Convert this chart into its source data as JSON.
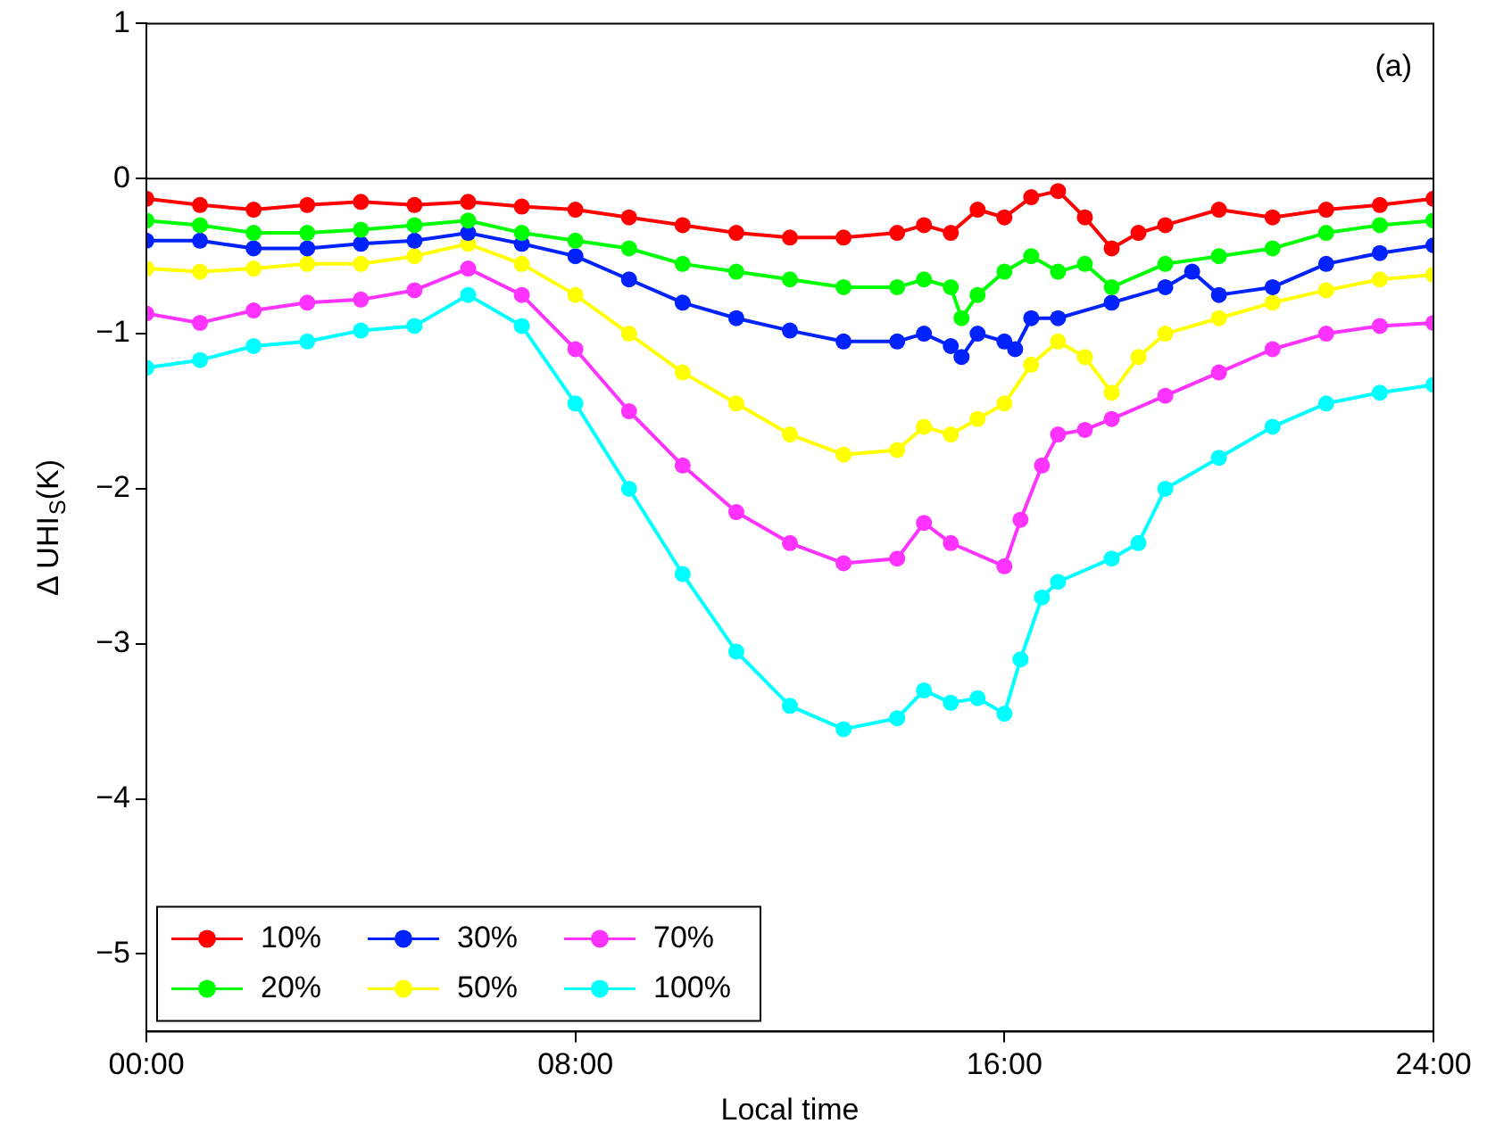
{
  "chart_data": {
    "type": "line",
    "xlabel": "Local time",
    "ylabel": "Δ UHI$_{S}$(K)",
    "annotations": [
      "(a)"
    ],
    "xlim": [
      0,
      24
    ],
    "xticks": [
      {
        "value": 0,
        "label": "00:00"
      },
      {
        "value": 8,
        "label": "08:00"
      },
      {
        "value": 16,
        "label": "16:00"
      },
      {
        "value": 24,
        "label": "24:00"
      }
    ],
    "ylim": [
      -5.5,
      1
    ],
    "yticks": [
      1,
      0,
      -1,
      -2,
      -3,
      -4,
      -5
    ],
    "grid": false,
    "legend": "bottom left",
    "marker": "circle",
    "line_style": "solid",
    "ref_lines": [
      {
        "axis": "y",
        "value": 0,
        "color": "#000000"
      }
    ],
    "series": [
      {
        "name": "10%",
        "color": "#ff0000",
        "x": [
          0,
          1,
          2,
          3,
          4,
          5,
          6,
          7,
          8,
          9,
          10,
          11,
          12,
          13,
          14,
          14.5,
          15,
          15.5,
          16,
          16.5,
          17,
          17.5,
          18,
          18.5,
          19,
          20,
          21,
          22,
          23,
          24
        ],
        "values": [
          -0.13,
          -0.17,
          -0.2,
          -0.17,
          -0.15,
          -0.17,
          -0.15,
          -0.18,
          -0.2,
          -0.25,
          -0.3,
          -0.35,
          -0.38,
          -0.38,
          -0.35,
          -0.3,
          -0.35,
          -0.2,
          -0.25,
          -0.12,
          -0.08,
          -0.25,
          -0.45,
          -0.35,
          -0.3,
          -0.2,
          -0.25,
          -0.2,
          -0.17,
          -0.13
        ]
      },
      {
        "name": "20%",
        "color": "#00ff00",
        "x": [
          0,
          1,
          2,
          3,
          4,
          5,
          6,
          7,
          8,
          9,
          10,
          11,
          12,
          13,
          14,
          14.5,
          15,
          15.2,
          15.5,
          16,
          16.5,
          17,
          17.5,
          18,
          19,
          20,
          21,
          22,
          23,
          24
        ],
        "values": [
          -0.27,
          -0.3,
          -0.35,
          -0.35,
          -0.33,
          -0.3,
          -0.27,
          -0.35,
          -0.4,
          -0.45,
          -0.55,
          -0.6,
          -0.65,
          -0.7,
          -0.7,
          -0.65,
          -0.7,
          -0.9,
          -0.75,
          -0.6,
          -0.5,
          -0.6,
          -0.55,
          -0.7,
          -0.55,
          -0.5,
          -0.45,
          -0.35,
          -0.3,
          -0.27
        ]
      },
      {
        "name": "30%",
        "color": "#0022ff",
        "x": [
          0,
          1,
          2,
          3,
          4,
          5,
          6,
          7,
          8,
          9,
          10,
          11,
          12,
          13,
          14,
          14.5,
          15,
          15.2,
          15.5,
          16,
          16.2,
          16.5,
          17,
          18,
          19,
          19.5,
          20,
          21,
          22,
          23,
          24
        ],
        "values": [
          -0.4,
          -0.4,
          -0.45,
          -0.45,
          -0.42,
          -0.4,
          -0.35,
          -0.42,
          -0.5,
          -0.65,
          -0.8,
          -0.9,
          -0.98,
          -1.05,
          -1.05,
          -1.0,
          -1.08,
          -1.15,
          -1.0,
          -1.05,
          -1.1,
          -0.9,
          -0.9,
          -0.8,
          -0.7,
          -0.6,
          -0.75,
          -0.7,
          -0.55,
          -0.48,
          -0.43
        ]
      },
      {
        "name": "50%",
        "color": "#ffff00",
        "x": [
          0,
          1,
          2,
          3,
          4,
          5,
          6,
          7,
          8,
          9,
          10,
          11,
          12,
          13,
          14,
          14.5,
          15,
          15.5,
          16,
          16.5,
          17,
          17.5,
          18,
          18.5,
          19,
          20,
          21,
          22,
          23,
          24
        ],
        "values": [
          -0.58,
          -0.6,
          -0.58,
          -0.55,
          -0.55,
          -0.5,
          -0.42,
          -0.55,
          -0.75,
          -1.0,
          -1.25,
          -1.45,
          -1.65,
          -1.78,
          -1.75,
          -1.6,
          -1.65,
          -1.55,
          -1.45,
          -1.2,
          -1.05,
          -1.15,
          -1.38,
          -1.15,
          -1.0,
          -0.9,
          -0.8,
          -0.72,
          -0.65,
          -0.62
        ]
      },
      {
        "name": "70%",
        "color": "#ff33ff",
        "x": [
          0,
          1,
          2,
          3,
          4,
          5,
          6,
          7,
          8,
          9,
          10,
          11,
          12,
          13,
          14,
          14.5,
          15,
          16,
          16.3,
          16.7,
          17,
          17.5,
          18,
          19,
          20,
          21,
          22,
          23,
          24
        ],
        "values": [
          -0.87,
          -0.93,
          -0.85,
          -0.8,
          -0.78,
          -0.72,
          -0.58,
          -0.75,
          -1.1,
          -1.5,
          -1.85,
          -2.15,
          -2.35,
          -2.48,
          -2.45,
          -2.22,
          -2.35,
          -2.5,
          -2.2,
          -1.85,
          -1.65,
          -1.62,
          -1.55,
          -1.4,
          -1.25,
          -1.1,
          -1.0,
          -0.95,
          -0.93
        ]
      },
      {
        "name": "100%",
        "color": "#00ffff",
        "x": [
          0,
          1,
          2,
          3,
          4,
          5,
          6,
          7,
          8,
          9,
          10,
          11,
          12,
          13,
          14,
          14.5,
          15,
          15.5,
          16,
          16.3,
          16.7,
          17,
          18,
          18.5,
          19,
          20,
          21,
          22,
          23,
          24
        ],
        "values": [
          -1.22,
          -1.17,
          -1.08,
          -1.05,
          -0.98,
          -0.95,
          -0.75,
          -0.95,
          -1.45,
          -2.0,
          -2.55,
          -3.05,
          -3.4,
          -3.55,
          -3.48,
          -3.3,
          -3.38,
          -3.35,
          -3.45,
          -3.1,
          -2.7,
          -2.6,
          -2.45,
          -2.35,
          -2.0,
          -1.8,
          -1.6,
          -1.45,
          -1.38,
          -1.33
        ]
      }
    ]
  }
}
